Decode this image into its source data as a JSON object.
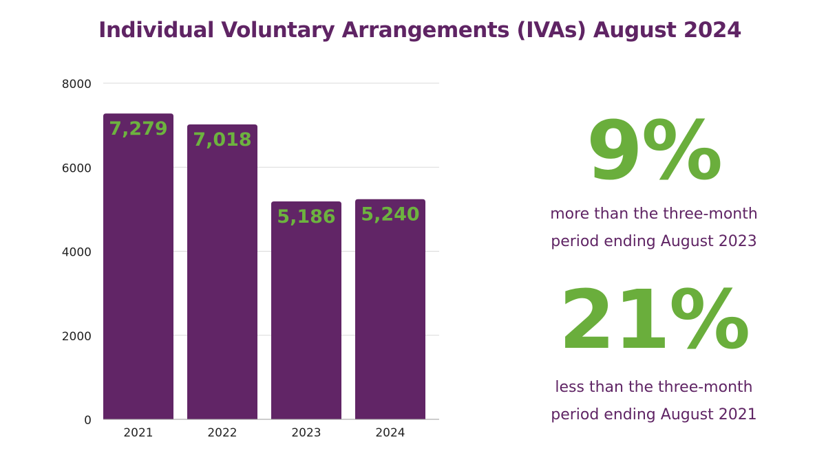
{
  "colors": {
    "bar": "#612566",
    "data_label": "#6db33f",
    "stat_value": "#6aae3c",
    "text_purple": "#5f2464",
    "grid": "#d9d9d9",
    "axis_text": "#222222"
  },
  "chart_data": {
    "type": "bar",
    "title": "Individual Voluntary Arrangements (IVAs) August 2024",
    "categories": [
      "2021",
      "2022",
      "2023",
      "2024"
    ],
    "values": [
      7279,
      7018,
      5186,
      5240
    ],
    "data_labels": [
      "7,279",
      "7,018",
      "5,186",
      "5,240"
    ],
    "ylim": [
      0,
      8000
    ],
    "yticks": [
      0,
      2000,
      4000,
      6000,
      8000
    ],
    "grid": true,
    "xlabel": "",
    "ylabel": ""
  },
  "stats": [
    {
      "value": "9%",
      "line1": "more than the three-month",
      "line2": "period ending August 2023"
    },
    {
      "value": "21%",
      "line1": "less than the three-month",
      "line2": "period ending August 2021"
    }
  ]
}
